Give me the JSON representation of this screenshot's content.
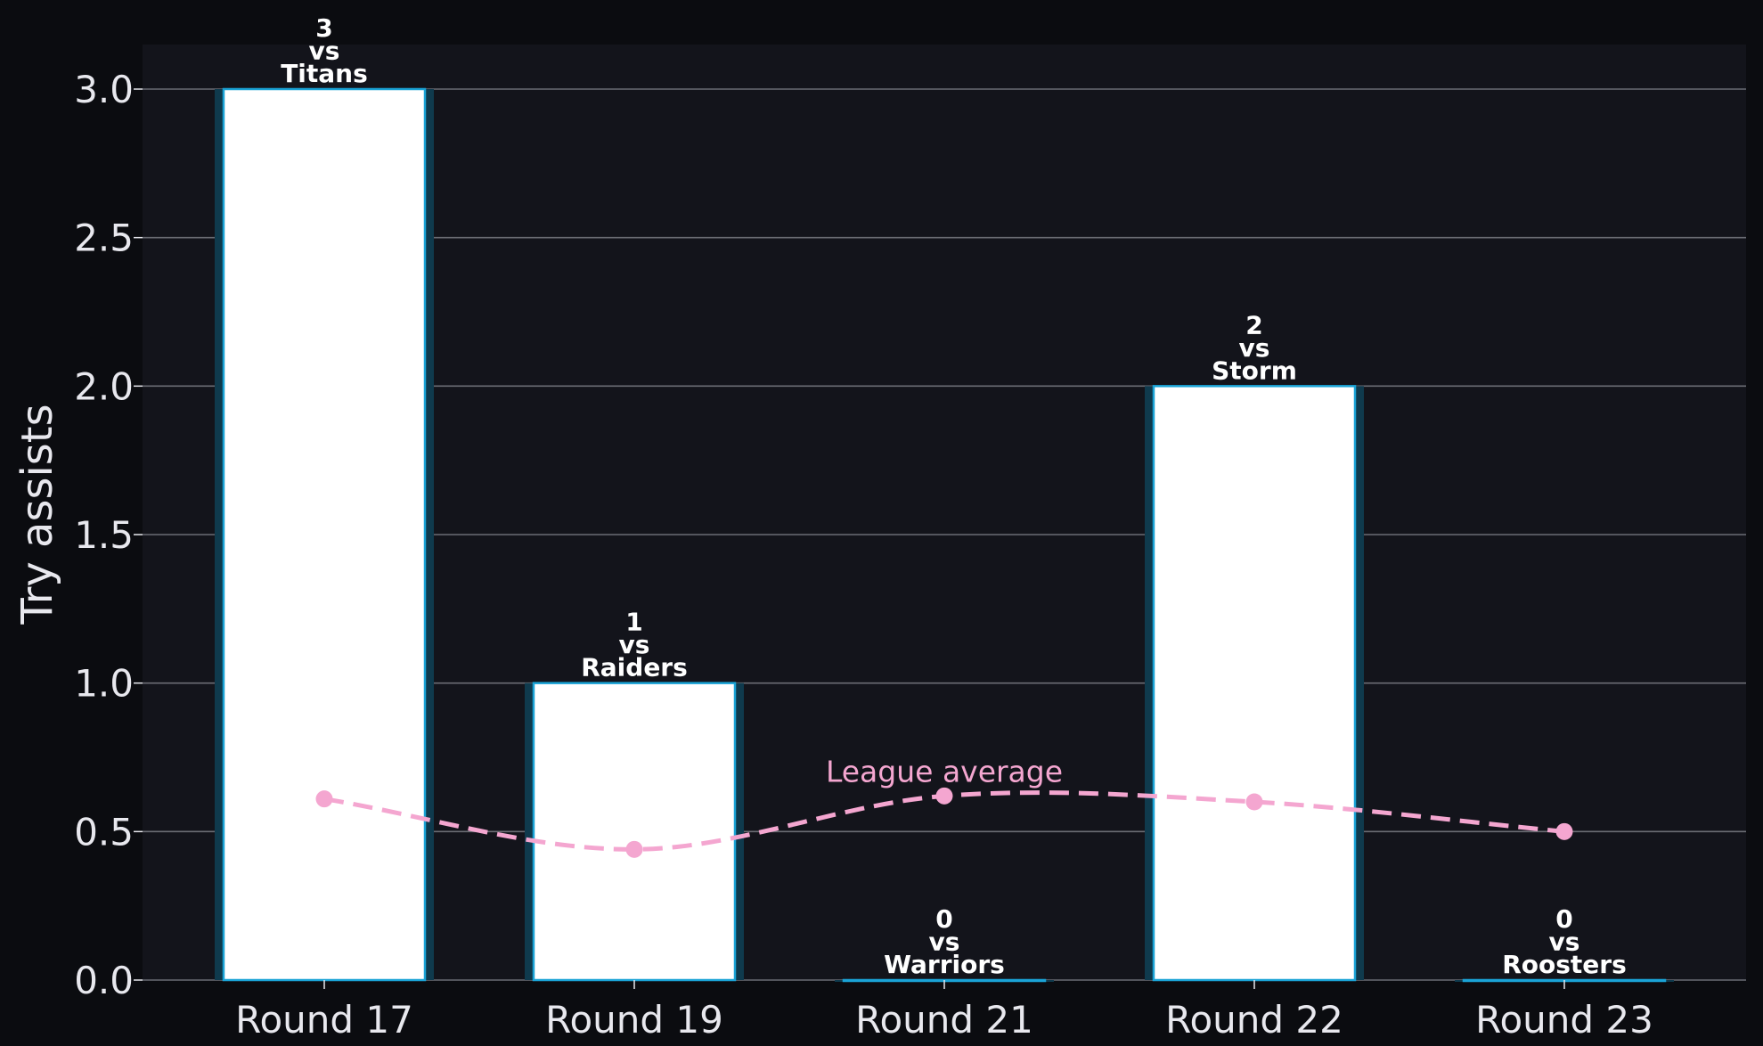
{
  "chart_data": {
    "type": "bar",
    "categories": [
      "Round 17",
      "Round 19",
      "Round 21",
      "Round 22",
      "Round 23"
    ],
    "values": [
      3,
      1,
      0,
      2,
      0
    ],
    "opponents": [
      "Titans",
      "Raiders",
      "Warriors",
      "Storm",
      "Roosters"
    ],
    "vs_word": "vs",
    "ylabel": "Try assists",
    "xlabel": "",
    "ylim": [
      0,
      3.15
    ],
    "yticks": [
      0.0,
      0.5,
      1.0,
      1.5,
      2.0,
      2.5,
      3.0
    ],
    "grid": "horizontal",
    "league_average": {
      "label": "League average",
      "values": [
        0.61,
        0.44,
        0.62,
        0.6,
        0.5
      ]
    },
    "colors": {
      "page_background": "#0b0c10",
      "plot_background": "#13141b",
      "bar_fill": "#ffffff",
      "bar_edge": "#1aa3d6",
      "bar_glow": "#0f3a4d",
      "average_line": "#f4a6d0",
      "grid": "#6b6d74",
      "text": "#e8e8ee"
    }
  }
}
